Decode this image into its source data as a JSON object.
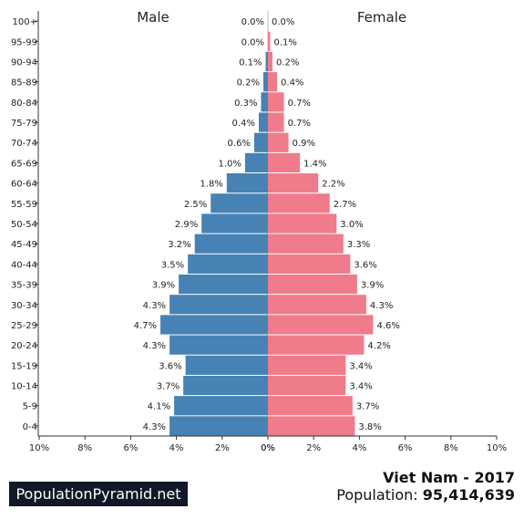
{
  "chart_data": {
    "type": "bar",
    "orientation": "horizontal-pyramid",
    "categories": [
      "0-4",
      "5-9",
      "10-14",
      "15-19",
      "20-24",
      "25-29",
      "30-34",
      "35-39",
      "40-44",
      "45-49",
      "50-54",
      "55-59",
      "60-64",
      "65-69",
      "70-74",
      "75-79",
      "80-84",
      "85-89",
      "90-94",
      "95-99",
      "100+"
    ],
    "series": [
      {
        "name": "Male",
        "color": "#4682b4",
        "values": [
          4.3,
          4.1,
          3.7,
          3.6,
          4.3,
          4.7,
          4.3,
          3.9,
          3.5,
          3.2,
          2.9,
          2.5,
          1.8,
          1.0,
          0.6,
          0.4,
          0.3,
          0.2,
          0.1,
          0.0,
          0.0
        ],
        "labels": [
          "4.3%",
          "4.1%",
          "3.7%",
          "3.6%",
          "4.3%",
          "4.7%",
          "4.3%",
          "3.9%",
          "3.5%",
          "3.2%",
          "2.9%",
          "2.5%",
          "1.8%",
          "1.0%",
          "0.6%",
          "0.4%",
          "0.3%",
          "0.2%",
          "0.1%",
          "0.0%",
          "0.0%"
        ]
      },
      {
        "name": "Female",
        "color": "#f07b8b",
        "values": [
          3.8,
          3.7,
          3.4,
          3.4,
          4.2,
          4.6,
          4.3,
          3.9,
          3.6,
          3.3,
          3.0,
          2.7,
          2.2,
          1.4,
          0.9,
          0.7,
          0.7,
          0.4,
          0.2,
          0.1,
          0.0
        ],
        "labels": [
          "3.8%",
          "3.7%",
          "3.4%",
          "3.4%",
          "4.2%",
          "4.6%",
          "4.3%",
          "3.9%",
          "3.6%",
          "3.3%",
          "3.0%",
          "2.7%",
          "2.2%",
          "1.4%",
          "0.9%",
          "0.7%",
          "0.7%",
          "0.4%",
          "0.2%",
          "0.1%",
          "0.0%"
        ]
      }
    ],
    "x_ticks_left": [
      "10%",
      "8%",
      "6%",
      "4%",
      "2%",
      "0%"
    ],
    "x_ticks_right": [
      "0%",
      "2%",
      "4%",
      "6%",
      "8%",
      "10%"
    ],
    "xlim": [
      -10,
      10
    ],
    "grid": false
  },
  "footer": {
    "brand": "PopulationPyramid.net",
    "country_year": "Viet Nam - 2017",
    "population_label": "Population:",
    "population_value": "95,414,639"
  }
}
